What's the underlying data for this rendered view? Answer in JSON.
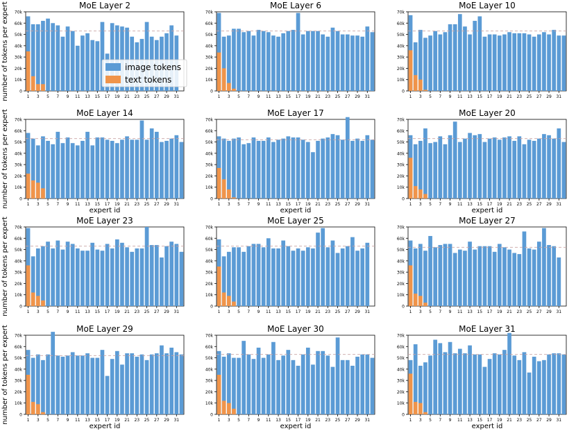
{
  "colors": {
    "image": "#5b9bd5",
    "text": "#f0944a",
    "mean_line": "#c9a3a3"
  },
  "chart_data": [
    {
      "type": "bar",
      "title": "MoE Layer 2",
      "xlabel": "",
      "ylabel": "number of tokens per expert",
      "ylim": [
        0,
        70000
      ],
      "mean": 53000,
      "series": [
        {
          "name": "image tokens",
          "values": [
            66000,
            59000,
            59000,
            62000,
            64000,
            60000,
            58000,
            48000,
            57000,
            53000,
            40000,
            49000,
            51000,
            45000,
            44000,
            61000,
            33000,
            60000,
            58000,
            57000,
            56000,
            48000,
            43000,
            46000,
            61000,
            48000,
            45000,
            48000,
            51000,
            58000,
            49000,
            0
          ]
        },
        {
          "name": "text tokens",
          "values": [
            35000,
            13000,
            6000,
            6000,
            0,
            0,
            0,
            0,
            0,
            0,
            0,
            0,
            0,
            0,
            0,
            0,
            0,
            0,
            0,
            0,
            0,
            0,
            0,
            0,
            0,
            0,
            0,
            0,
            0,
            0,
            0,
            0
          ]
        }
      ],
      "show_xlabel": false,
      "legend_position": "lower-right"
    },
    {
      "type": "bar",
      "title": "MoE Layer 6",
      "xlabel": "",
      "ylabel": "",
      "ylim": [
        0,
        70000
      ],
      "mean": 53000,
      "series": [
        {
          "name": "",
          "values": [
            69000,
            48000,
            49000,
            55000,
            55000,
            52000,
            53000,
            49000,
            54000,
            53000,
            52000,
            49000,
            48000,
            51000,
            53000,
            54000,
            69000,
            50000,
            53000,
            53000,
            53000,
            50000,
            48000,
            56000,
            53000,
            50000,
            50000,
            49000,
            49000,
            48000,
            57000,
            52000
          ]
        },
        {
          "name": "",
          "values": [
            34000,
            20000,
            7000,
            2000,
            0,
            0,
            0,
            0,
            0,
            0,
            0,
            0,
            0,
            0,
            0,
            0,
            0,
            0,
            0,
            0,
            0,
            0,
            0,
            0,
            0,
            0,
            0,
            0,
            0,
            0,
            0,
            0
          ]
        }
      ],
      "show_xlabel": false
    },
    {
      "type": "bar",
      "title": "MoE Layer 10",
      "xlabel": "",
      "ylabel": "",
      "ylim": [
        0,
        70000
      ],
      "mean": 53000,
      "series": [
        {
          "name": "",
          "values": [
            67000,
            43000,
            54000,
            47000,
            49000,
            53000,
            50000,
            52000,
            59000,
            59000,
            68000,
            57000,
            50000,
            62000,
            66000,
            48000,
            50000,
            50000,
            49000,
            50000,
            52000,
            51000,
            51000,
            51000,
            50000,
            48000,
            50000,
            52000,
            50000,
            54000,
            49000,
            49000
          ]
        },
        {
          "name": "",
          "values": [
            36000,
            14000,
            10000,
            1000,
            0,
            0,
            0,
            0,
            0,
            0,
            0,
            0,
            0,
            0,
            0,
            0,
            0,
            0,
            0,
            0,
            0,
            0,
            0,
            0,
            0,
            0,
            0,
            0,
            0,
            0,
            0,
            0
          ]
        }
      ],
      "show_xlabel": false
    },
    {
      "type": "bar",
      "title": "MoE Layer 14",
      "xlabel": "expert id",
      "ylabel": "number of tokens per expert",
      "ylim": [
        0,
        70000
      ],
      "mean": 53000,
      "series": [
        {
          "name": "",
          "values": [
            58000,
            53000,
            47000,
            55000,
            51000,
            48000,
            59000,
            49000,
            54000,
            49000,
            47000,
            51000,
            59000,
            47000,
            54000,
            54000,
            52000,
            51000,
            49000,
            52000,
            55000,
            52000,
            52000,
            69000,
            52000,
            62000,
            59000,
            50000,
            51000,
            53000,
            56000,
            50000
          ]
        },
        {
          "name": "",
          "values": [
            22000,
            16000,
            14000,
            9000,
            0,
            0,
            0,
            0,
            0,
            0,
            0,
            0,
            0,
            0,
            0,
            0,
            0,
            0,
            0,
            0,
            0,
            0,
            0,
            0,
            0,
            0,
            0,
            0,
            0,
            0,
            0,
            0
          ]
        }
      ],
      "show_xlabel": true
    },
    {
      "type": "bar",
      "title": "MoE Layer 17",
      "xlabel": "expert id",
      "ylabel": "",
      "ylim": [
        0,
        70000
      ],
      "mean": 52000,
      "series": [
        {
          "name": "",
          "values": [
            55000,
            53000,
            51000,
            53000,
            54000,
            48000,
            49000,
            54000,
            51000,
            51000,
            54000,
            50000,
            52000,
            53000,
            55000,
            54000,
            54000,
            52000,
            50000,
            41000,
            51000,
            53000,
            54000,
            57000,
            56000,
            52000,
            72000,
            51000,
            53000,
            51000,
            56000,
            52000
          ]
        },
        {
          "name": "",
          "values": [
            27000,
            17000,
            8000,
            1000,
            0,
            0,
            0,
            0,
            0,
            0,
            0,
            0,
            0,
            0,
            0,
            0,
            0,
            0,
            0,
            0,
            0,
            0,
            0,
            0,
            0,
            0,
            0,
            0,
            0,
            0,
            0,
            0
          ]
        }
      ],
      "show_xlabel": true
    },
    {
      "type": "bar",
      "title": "MoE Layer 20",
      "xlabel": "expert id",
      "ylabel": "",
      "ylim": [
        0,
        70000
      ],
      "mean": 53000,
      "series": [
        {
          "name": "",
          "values": [
            56000,
            48000,
            51000,
            62000,
            49000,
            50000,
            55000,
            48000,
            56000,
            68000,
            50000,
            53000,
            58000,
            56000,
            57000,
            50000,
            53000,
            54000,
            52000,
            54000,
            55000,
            51000,
            55000,
            48000,
            52000,
            51000,
            53000,
            57000,
            56000,
            53000,
            62000,
            50000
          ]
        },
        {
          "name": "",
          "values": [
            36000,
            11000,
            8000,
            4000,
            0,
            0,
            0,
            0,
            0,
            0,
            0,
            0,
            0,
            0,
            0,
            0,
            0,
            0,
            0,
            0,
            0,
            0,
            0,
            0,
            0,
            0,
            0,
            0,
            0,
            0,
            0,
            0
          ]
        }
      ],
      "show_xlabel": true
    },
    {
      "type": "bar",
      "title": "MoE Layer 23",
      "xlabel": "",
      "ylabel": "number of tokens per expert",
      "ylim": [
        0,
        70000
      ],
      "mean": 53000,
      "series": [
        {
          "name": "",
          "values": [
            69000,
            44000,
            51000,
            53000,
            57000,
            51000,
            58000,
            50000,
            57000,
            55000,
            51000,
            49000,
            49000,
            56000,
            50000,
            49000,
            55000,
            51000,
            59000,
            56000,
            52000,
            48000,
            51000,
            51000,
            70000,
            54000,
            54000,
            43000,
            53000,
            57000,
            55000,
            48000
          ]
        },
        {
          "name": "",
          "values": [
            36000,
            12000,
            9000,
            5000,
            0,
            0,
            0,
            0,
            0,
            0,
            0,
            0,
            0,
            0,
            0,
            0,
            0,
            0,
            0,
            0,
            0,
            0,
            0,
            0,
            0,
            0,
            0,
            0,
            0,
            0,
            0,
            0
          ]
        }
      ],
      "show_xlabel": false
    },
    {
      "type": "bar",
      "title": "MoE Layer 25",
      "xlabel": "",
      "ylabel": "",
      "ylim": [
        0,
        70000
      ],
      "mean": 53000,
      "series": [
        {
          "name": "",
          "values": [
            59000,
            44000,
            48000,
            52000,
            52000,
            48000,
            53000,
            55000,
            55000,
            52000,
            60000,
            51000,
            51000,
            58000,
            53000,
            49000,
            51000,
            49000,
            52000,
            51000,
            65000,
            69000,
            52000,
            58000,
            47000,
            51000,
            53000,
            61000,
            49000,
            51000,
            56000,
            0
          ]
        },
        {
          "name": "",
          "values": [
            35000,
            12000,
            9000,
            4000,
            0,
            0,
            0,
            0,
            0,
            0,
            0,
            0,
            0,
            0,
            0,
            0,
            0,
            0,
            0,
            0,
            0,
            0,
            0,
            0,
            0,
            0,
            0,
            0,
            0,
            0,
            0,
            0
          ]
        }
      ],
      "show_xlabel": false
    },
    {
      "type": "bar",
      "title": "MoE Layer 27",
      "xlabel": "",
      "ylabel": "",
      "ylim": [
        0,
        70000
      ],
      "mean": 52000,
      "series": [
        {
          "name": "",
          "values": [
            58000,
            51000,
            55000,
            49000,
            62000,
            52000,
            54000,
            55000,
            55000,
            47000,
            50000,
            49000,
            57000,
            50000,
            53000,
            53000,
            53000,
            48000,
            55000,
            52000,
            50000,
            47000,
            46000,
            66000,
            51000,
            50000,
            57000,
            69000,
            54000,
            53000,
            43000,
            0
          ]
        },
        {
          "name": "",
          "values": [
            36000,
            11000,
            9000,
            3000,
            0,
            0,
            0,
            0,
            0,
            0,
            0,
            0,
            0,
            0,
            0,
            0,
            0,
            0,
            0,
            0,
            0,
            0,
            0,
            0,
            0,
            0,
            0,
            0,
            0,
            0,
            0,
            0
          ]
        }
      ],
      "show_xlabel": false
    },
    {
      "type": "bar",
      "title": "MoE Layer 29",
      "xlabel": "expert id",
      "ylabel": "number of tokens per expert",
      "ylim": [
        0,
        70000
      ],
      "mean": 52000,
      "series": [
        {
          "name": "",
          "values": [
            57000,
            50000,
            53000,
            48000,
            53000,
            73000,
            52000,
            51000,
            52000,
            55000,
            52000,
            52000,
            54000,
            50000,
            50000,
            57000,
            34000,
            49000,
            56000,
            44000,
            54000,
            54000,
            51000,
            53000,
            48000,
            53000,
            54000,
            61000,
            54000,
            59000,
            55000,
            53000
          ]
        },
        {
          "name": "",
          "values": [
            35000,
            11000,
            9000,
            2000,
            0,
            0,
            0,
            0,
            0,
            0,
            0,
            0,
            0,
            0,
            0,
            0,
            0,
            0,
            0,
            0,
            0,
            0,
            0,
            0,
            0,
            0,
            0,
            0,
            0,
            0,
            0,
            0
          ]
        }
      ],
      "show_xlabel": true
    },
    {
      "type": "bar",
      "title": "MoE Layer 30",
      "xlabel": "expert id",
      "ylabel": "",
      "ylim": [
        0,
        70000
      ],
      "mean": 53000,
      "series": [
        {
          "name": "",
          "values": [
            56000,
            51000,
            54000,
            50000,
            50000,
            65000,
            53000,
            49000,
            59000,
            50000,
            53000,
            64000,
            48000,
            52000,
            57000,
            48000,
            43000,
            53000,
            59000,
            44000,
            56000,
            56000,
            52000,
            42000,
            68000,
            48000,
            48000,
            43000,
            51000,
            53000,
            53000,
            50000
          ]
        },
        {
          "name": "",
          "values": [
            35000,
            12000,
            10000,
            5000,
            0,
            0,
            0,
            0,
            0,
            0,
            0,
            0,
            0,
            0,
            0,
            0,
            0,
            0,
            0,
            0,
            0,
            0,
            0,
            0,
            0,
            0,
            0,
            0,
            0,
            0,
            0,
            0
          ]
        }
      ],
      "show_xlabel": true
    },
    {
      "type": "bar",
      "title": "MoE Layer 31",
      "xlabel": "expert id",
      "ylabel": "",
      "ylim": [
        0,
        70000
      ],
      "mean": 53000,
      "series": [
        {
          "name": "",
          "values": [
            48000,
            62000,
            43000,
            46000,
            52000,
            66000,
            63000,
            55000,
            64000,
            54000,
            58000,
            54000,
            61000,
            53000,
            53000,
            42000,
            49000,
            54000,
            53000,
            57000,
            72000,
            52000,
            48000,
            55000,
            37000,
            51000,
            47000,
            48000,
            53000,
            54000,
            54000,
            53000
          ]
        },
        {
          "name": "",
          "values": [
            36000,
            11000,
            10000,
            2000,
            0,
            0,
            0,
            0,
            0,
            0,
            0,
            0,
            0,
            0,
            0,
            0,
            0,
            0,
            0,
            0,
            0,
            0,
            0,
            0,
            0,
            0,
            0,
            0,
            0,
            0,
            0,
            0
          ]
        }
      ],
      "show_xlabel": true
    }
  ],
  "axis": {
    "yticks": [
      "0",
      "10k",
      "20k",
      "30k",
      "40k",
      "50k",
      "60k",
      "70k"
    ],
    "xticks": [
      "1",
      "3",
      "5",
      "7",
      "9",
      "11",
      "13",
      "15",
      "17",
      "19",
      "21",
      "23",
      "25",
      "27",
      "29",
      "31"
    ]
  },
  "legend": {
    "image_label": "image tokens",
    "text_label": "text tokens"
  }
}
